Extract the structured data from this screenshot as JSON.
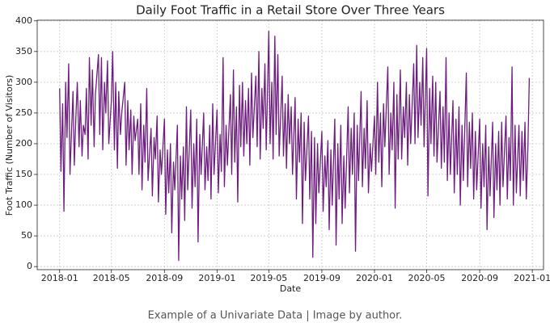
{
  "chart_data": {
    "type": "line",
    "title": "Daily Foot Traffic in a Retail Store Over Three Years",
    "xlabel": "Date",
    "ylabel": "Foot Traffic (Number of Visitors)",
    "color": "#6c1d7e",
    "grid": true,
    "xlim": [
      "2017-11-10",
      "2021-01-27"
    ],
    "xticks": [
      {
        "value": "2018-01-01",
        "label": "2018-01"
      },
      {
        "value": "2018-05-01",
        "label": "2018-05"
      },
      {
        "value": "2018-09-01",
        "label": "2018-09"
      },
      {
        "value": "2019-01-01",
        "label": "2019-01"
      },
      {
        "value": "2019-05-01",
        "label": "2019-05"
      },
      {
        "value": "2019-09-01",
        "label": "2019-09"
      },
      {
        "value": "2020-01-01",
        "label": "2020-01"
      },
      {
        "value": "2020-05-01",
        "label": "2020-05"
      },
      {
        "value": "2020-09-01",
        "label": "2020-09"
      },
      {
        "value": "2021-01-01",
        "label": "2021-01"
      }
    ],
    "ylim": [
      -5,
      401
    ],
    "yticks": [
      0,
      50,
      100,
      150,
      200,
      250,
      300,
      350,
      400
    ],
    "x": [
      "2018-01-01",
      "2018-01-04",
      "2018-01-08",
      "2018-01-11",
      "2018-01-15",
      "2018-01-18",
      "2018-01-22",
      "2018-01-25",
      "2018-02-01",
      "2018-02-04",
      "2018-02-08",
      "2018-02-11",
      "2018-02-15",
      "2018-02-18",
      "2018-02-22",
      "2018-02-25",
      "2018-03-01",
      "2018-03-04",
      "2018-03-08",
      "2018-03-11",
      "2018-03-15",
      "2018-03-18",
      "2018-03-22",
      "2018-03-25",
      "2018-04-01",
      "2018-04-04",
      "2018-04-08",
      "2018-04-11",
      "2018-04-15",
      "2018-04-18",
      "2018-04-22",
      "2018-04-25",
      "2018-05-01",
      "2018-05-04",
      "2018-05-08",
      "2018-05-11",
      "2018-05-15",
      "2018-05-18",
      "2018-05-22",
      "2018-05-25",
      "2018-06-01",
      "2018-06-04",
      "2018-06-08",
      "2018-06-11",
      "2018-06-15",
      "2018-06-18",
      "2018-06-22",
      "2018-06-25",
      "2018-07-01",
      "2018-07-04",
      "2018-07-08",
      "2018-07-11",
      "2018-07-15",
      "2018-07-18",
      "2018-07-22",
      "2018-07-25",
      "2018-08-01",
      "2018-08-04",
      "2018-08-08",
      "2018-08-11",
      "2018-08-15",
      "2018-08-18",
      "2018-08-22",
      "2018-08-25",
      "2018-09-01",
      "2018-09-04",
      "2018-09-08",
      "2018-09-11",
      "2018-09-15",
      "2018-09-18",
      "2018-09-22",
      "2018-09-25",
      "2018-10-01",
      "2018-10-04",
      "2018-10-08",
      "2018-10-11",
      "2018-10-15",
      "2018-10-18",
      "2018-10-22",
      "2018-10-25",
      "2018-11-01",
      "2018-11-04",
      "2018-11-08",
      "2018-11-11",
      "2018-11-15",
      "2018-11-18",
      "2018-11-22",
      "2018-11-25",
      "2018-12-01",
      "2018-12-04",
      "2018-12-08",
      "2018-12-11",
      "2018-12-15",
      "2018-12-18",
      "2018-12-22",
      "2018-12-25",
      "2019-01-01",
      "2019-01-04",
      "2019-01-08",
      "2019-01-11",
      "2019-01-15",
      "2019-01-18",
      "2019-01-22",
      "2019-01-25",
      "2019-02-01",
      "2019-02-04",
      "2019-02-08",
      "2019-02-11",
      "2019-02-15",
      "2019-02-18",
      "2019-02-22",
      "2019-02-25",
      "2019-03-01",
      "2019-03-04",
      "2019-03-08",
      "2019-03-11",
      "2019-03-15",
      "2019-03-18",
      "2019-03-22",
      "2019-03-25",
      "2019-04-01",
      "2019-04-04",
      "2019-04-08",
      "2019-04-11",
      "2019-04-15",
      "2019-04-18",
      "2019-04-22",
      "2019-04-25",
      "2019-05-01",
      "2019-05-04",
      "2019-05-08",
      "2019-05-11",
      "2019-05-15",
      "2019-05-18",
      "2019-05-22",
      "2019-05-25",
      "2019-06-01",
      "2019-06-04",
      "2019-06-08",
      "2019-06-11",
      "2019-06-15",
      "2019-06-18",
      "2019-06-22",
      "2019-06-25",
      "2019-07-01",
      "2019-07-04",
      "2019-07-08",
      "2019-07-11",
      "2019-07-15",
      "2019-07-18",
      "2019-07-22",
      "2019-07-25",
      "2019-08-01",
      "2019-08-04",
      "2019-08-08",
      "2019-08-11",
      "2019-08-15",
      "2019-08-18",
      "2019-08-22",
      "2019-08-25",
      "2019-09-01",
      "2019-09-04",
      "2019-09-08",
      "2019-09-11",
      "2019-09-15",
      "2019-09-18",
      "2019-09-22",
      "2019-09-25",
      "2019-10-01",
      "2019-10-04",
      "2019-10-08",
      "2019-10-11",
      "2019-10-15",
      "2019-10-18",
      "2019-10-22",
      "2019-10-25",
      "2019-11-01",
      "2019-11-04",
      "2019-11-08",
      "2019-11-11",
      "2019-11-15",
      "2019-11-18",
      "2019-11-22",
      "2019-11-25",
      "2019-12-01",
      "2019-12-04",
      "2019-12-08",
      "2019-12-11",
      "2019-12-15",
      "2019-12-18",
      "2019-12-22",
      "2019-12-25",
      "2020-01-01",
      "2020-01-04",
      "2020-01-08",
      "2020-01-11",
      "2020-01-15",
      "2020-01-18",
      "2020-01-22",
      "2020-01-25",
      "2020-02-01",
      "2020-02-04",
      "2020-02-08",
      "2020-02-11",
      "2020-02-15",
      "2020-02-18",
      "2020-02-22",
      "2020-02-25",
      "2020-03-01",
      "2020-03-04",
      "2020-03-08",
      "2020-03-11",
      "2020-03-15",
      "2020-03-18",
      "2020-03-22",
      "2020-03-25",
      "2020-04-01",
      "2020-04-04",
      "2020-04-08",
      "2020-04-11",
      "2020-04-15",
      "2020-04-18",
      "2020-04-22",
      "2020-04-25",
      "2020-05-01",
      "2020-05-04",
      "2020-05-08",
      "2020-05-11",
      "2020-05-15",
      "2020-05-18",
      "2020-05-22",
      "2020-05-25",
      "2020-06-01",
      "2020-06-04",
      "2020-06-08",
      "2020-06-11",
      "2020-06-15",
      "2020-06-18",
      "2020-06-22",
      "2020-06-25",
      "2020-07-01",
      "2020-07-04",
      "2020-07-08",
      "2020-07-11",
      "2020-07-15",
      "2020-07-18",
      "2020-07-22",
      "2020-07-25",
      "2020-08-01",
      "2020-08-04",
      "2020-08-08",
      "2020-08-11",
      "2020-08-15",
      "2020-08-18",
      "2020-08-22",
      "2020-08-25",
      "2020-09-01",
      "2020-09-04",
      "2020-09-08",
      "2020-09-11",
      "2020-09-15",
      "2020-09-18",
      "2020-09-22",
      "2020-09-25",
      "2020-10-01",
      "2020-10-04",
      "2020-10-08",
      "2020-10-11",
      "2020-10-15",
      "2020-10-18",
      "2020-10-22",
      "2020-10-25",
      "2020-11-01",
      "2020-11-04",
      "2020-11-08",
      "2020-11-11",
      "2020-11-15",
      "2020-11-18",
      "2020-11-22",
      "2020-11-25",
      "2020-12-01",
      "2020-12-04",
      "2020-12-08",
      "2020-12-11",
      "2020-12-15",
      "2020-12-18",
      "2020-12-22",
      "2020-12-25"
    ],
    "values": [
      290,
      155,
      265,
      90,
      300,
      210,
      330,
      150,
      285,
      165,
      250,
      300,
      195,
      270,
      180,
      230,
      215,
      290,
      175,
      340,
      230,
      320,
      195,
      280,
      345,
      215,
      340,
      190,
      300,
      250,
      335,
      200,
      270,
      350,
      190,
      300,
      160,
      285,
      215,
      250,
      300,
      165,
      270,
      190,
      255,
      150,
      245,
      205,
      240,
      150,
      265,
      125,
      230,
      170,
      290,
      140,
      225,
      115,
      210,
      175,
      245,
      105,
      190,
      150,
      240,
      85,
      190,
      120,
      200,
      55,
      170,
      125,
      230,
      10,
      180,
      110,
      195,
      75,
      260,
      125,
      255,
      95,
      200,
      130,
      240,
      40,
      215,
      150,
      250,
      125,
      195,
      140,
      230,
      110,
      265,
      150,
      255,
      120,
      215,
      155,
      340,
      130,
      230,
      165,
      280,
      150,
      320,
      170,
      260,
      105,
      295,
      195,
      300,
      180,
      270,
      200,
      290,
      165,
      315,
      210,
      310,
      195,
      350,
      175,
      290,
      225,
      330,
      190,
      383,
      200,
      300,
      175,
      375,
      215,
      345,
      180,
      310,
      180,
      265,
      160,
      280,
      200,
      260,
      150,
      275,
      110,
      240,
      170,
      250,
      70,
      235,
      140,
      245,
      110,
      220,
      15,
      210,
      70,
      200,
      120,
      220,
      90,
      180,
      130,
      205,
      60,
      190,
      100,
      240,
      35,
      200,
      110,
      230,
      70,
      180,
      95,
      260,
      120,
      225,
      150,
      250,
      25,
      230,
      140,
      285,
      130,
      225,
      160,
      270,
      120,
      200,
      155,
      245,
      150,
      300,
      170,
      250,
      130,
      265,
      195,
      325,
      150,
      250,
      190,
      300,
      95,
      280,
      175,
      320,
      175,
      260,
      210,
      300,
      165,
      280,
      200,
      330,
      200,
      360,
      210,
      300,
      230,
      340,
      195,
      355,
      115,
      290,
      200,
      310,
      180,
      300,
      170,
      285,
      160,
      260,
      170,
      340,
      140,
      250,
      150,
      270,
      120,
      240,
      150,
      260,
      100,
      230,
      140,
      315,
      130,
      235,
      160,
      250,
      110,
      220,
      125,
      240,
      95,
      200,
      130,
      230,
      60,
      195,
      115,
      235,
      80,
      200,
      125,
      220,
      100,
      235,
      130,
      245,
      110,
      210,
      140,
      325,
      100,
      230,
      120,
      230,
      115,
      220,
      140,
      235,
      110,
      200,
      307
    ]
  },
  "caption": "Example of a Univariate Data | Image by author."
}
